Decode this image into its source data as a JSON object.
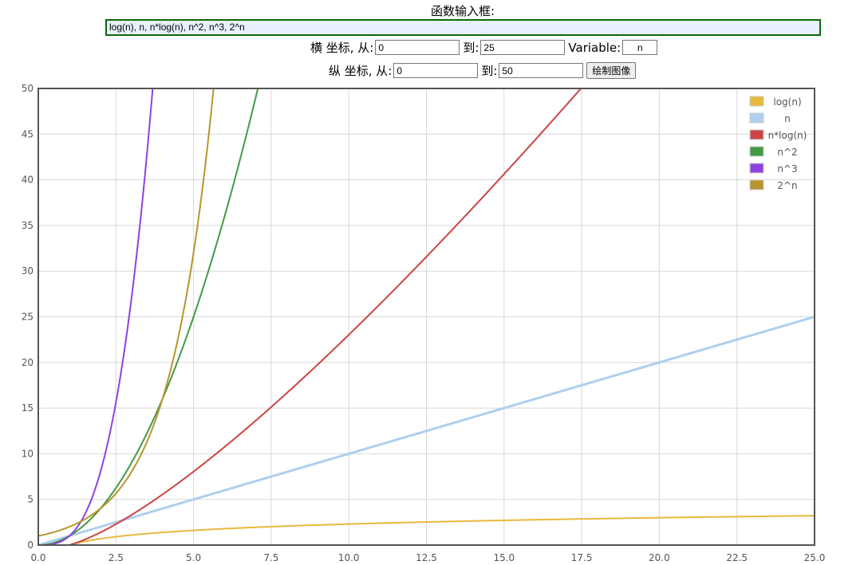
{
  "form": {
    "func_label": "函数输入框:",
    "func_value": "log(n), n, n*log(n), n^2, n^3, 2^n",
    "x_label": "横 坐标, 从:",
    "x_from": "0",
    "to_label": "到:",
    "x_to": "25",
    "var_label": "Variable:",
    "var_value": "n",
    "y_label": "纵 坐标, 从:",
    "y_from": "0",
    "y_to": "50",
    "draw_button": "绘制图像"
  },
  "chart_data": {
    "type": "line",
    "xlim": [
      0,
      25
    ],
    "ylim": [
      0,
      50
    ],
    "x_ticks": [
      "0.0",
      "2.5",
      "5.0",
      "7.5",
      "10.0",
      "12.5",
      "15.0",
      "17.5",
      "20.0",
      "22.5",
      "25.0"
    ],
    "y_ticks": [
      "0",
      "5",
      "10",
      "15",
      "20",
      "25",
      "30",
      "35",
      "40",
      "45",
      "50"
    ],
    "grid": true,
    "legend_position": "top-right",
    "series": [
      {
        "name": "log(n)",
        "color": "#e8b93c",
        "expression": "log(n)"
      },
      {
        "name": "n",
        "color": "#aecfee",
        "expression": "n"
      },
      {
        "name": "n*log(n)",
        "color": "#cc4444",
        "expression": "n*log(n)"
      },
      {
        "name": "n^2",
        "color": "#449a44",
        "expression": "n^2"
      },
      {
        "name": "n^3",
        "color": "#9042e0",
        "expression": "n^3"
      },
      {
        "name": "2^n",
        "color": "#b9952e",
        "expression": "2^n"
      }
    ]
  }
}
